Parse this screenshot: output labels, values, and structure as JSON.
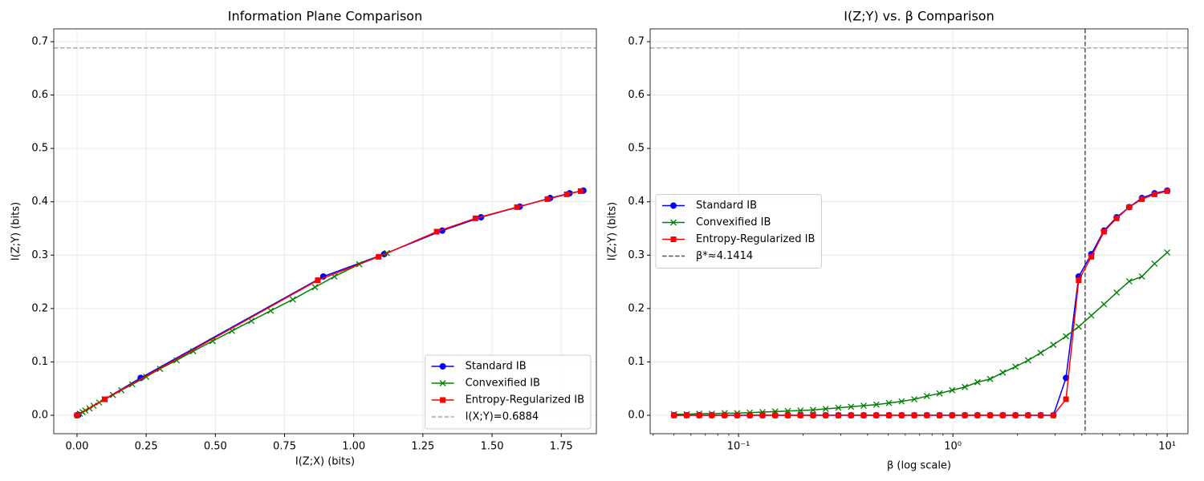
{
  "chart_data": [
    {
      "type": "line",
      "title": "Information Plane Comparison",
      "xlabel": "I(Z;X) (bits)",
      "ylabel": "I(Z;Y) (bits)",
      "xlim": [
        -0.084,
        1.877
      ],
      "ylim": [
        -0.0345,
        0.724
      ],
      "xticks": [
        {
          "value": 0,
          "label": "0.00"
        },
        {
          "value": 0.25,
          "label": "0.25"
        },
        {
          "value": 0.5,
          "label": "0.50"
        },
        {
          "value": 0.75,
          "label": "0.75"
        },
        {
          "value": 1,
          "label": "1.00"
        },
        {
          "value": 1.25,
          "label": "1.25"
        },
        {
          "value": 1.5,
          "label": "1.50"
        },
        {
          "value": 1.75,
          "label": "1.75"
        }
      ],
      "yticks": [
        {
          "value": 0,
          "label": "0.0"
        },
        0.1,
        0.2,
        0.3,
        0.4,
        0.5,
        0.6,
        0.7
      ],
      "grid": true,
      "legend": "lower right",
      "series": [
        {
          "name": "Standard IB",
          "color": "#0000ff",
          "marker": "circle",
          "x": [
            0,
            0.005,
            0.23,
            0.89,
            1.11,
            1.32,
            1.46,
            1.6,
            1.71,
            1.78,
            1.83
          ],
          "values": [
            0,
            0.001,
            0.07,
            0.26,
            0.302,
            0.346,
            0.371,
            0.391,
            0.407,
            0.416,
            0.421
          ]
        },
        {
          "name": "Convexified IB",
          "color": "#008000",
          "marker": "x",
          "x": [
            0.01,
            0.02,
            0.03,
            0.045,
            0.06,
            0.08,
            0.1,
            0.13,
            0.16,
            0.2,
            0.25,
            0.3,
            0.36,
            0.42,
            0.49,
            0.56,
            0.63,
            0.7,
            0.78,
            0.86,
            0.93,
            1.02,
            1.12
          ],
          "values": [
            0.003,
            0.006,
            0.009,
            0.013,
            0.018,
            0.024,
            0.03,
            0.038,
            0.047,
            0.058,
            0.072,
            0.087,
            0.103,
            0.12,
            0.139,
            0.158,
            0.177,
            0.196,
            0.217,
            0.24,
            0.26,
            0.283,
            0.304
          ]
        },
        {
          "name": "Entropy-Regularized IB",
          "color": "#ff0000",
          "marker": "square",
          "x": [
            0,
            0.1,
            0.87,
            1.09,
            1.3,
            1.44,
            1.59,
            1.7,
            1.77,
            1.82
          ],
          "values": [
            0,
            0.03,
            0.253,
            0.297,
            0.344,
            0.369,
            0.39,
            0.405,
            0.414,
            0.42
          ]
        }
      ],
      "hlines": [
        {
          "name": "I(X;Y)=0.6884",
          "value": 0.6884,
          "color": "#aaaaaa"
        }
      ]
    },
    {
      "type": "line",
      "title": "I(Z;Y) vs. β Comparison",
      "xlabel": "β (log scale)",
      "ylabel": "I(Z;Y) (bits)",
      "xscale": "log",
      "xlim": [
        0.0387,
        12.5
      ],
      "ylim": [
        -0.0345,
        0.724
      ],
      "xticks": [
        {
          "value": 0.1,
          "label": "10⁻¹"
        },
        {
          "value": 1,
          "label": "10⁰"
        },
        {
          "value": 10,
          "label": "10¹"
        }
      ],
      "xminorticks": [
        0.04,
        0.05,
        0.06,
        0.07,
        0.08,
        0.09,
        0.2,
        0.3,
        0.4,
        0.5,
        0.6,
        0.7,
        0.8,
        0.9,
        2,
        3,
        4,
        5,
        6,
        7,
        8,
        9
      ],
      "yticks": [
        {
          "value": 0,
          "label": "0.0"
        },
        0.1,
        0.2,
        0.3,
        0.4,
        0.5,
        0.6,
        0.7
      ],
      "grid": true,
      "legend": "center left",
      "x": [
        0.05,
        0.0573,
        0.0656,
        0.0751,
        0.0861,
        0.0986,
        0.1129,
        0.1294,
        0.1482,
        0.1698,
        0.1945,
        0.2228,
        0.2552,
        0.2923,
        0.3349,
        0.3836,
        0.4394,
        0.5034,
        0.5767,
        0.6606,
        0.7568,
        0.8669,
        0.9931,
        1.1376,
        1.3032,
        1.4928,
        1.71,
        1.9588,
        2.2439,
        2.5704,
        2.9444,
        3.3729,
        3.8637,
        4.4259,
        5.07,
        5.8077,
        6.6528,
        7.6209,
        8.7298,
        10
      ],
      "series": [
        {
          "name": "Standard IB",
          "color": "#0000ff",
          "marker": "circle",
          "values": [
            0,
            0,
            0,
            0,
            0,
            0,
            0,
            0,
            0,
            0,
            0,
            0,
            0,
            0,
            0,
            0,
            0,
            0,
            0,
            0,
            0,
            0,
            0,
            0,
            0,
            0,
            0,
            0,
            0,
            0,
            0,
            0.07,
            0.26,
            0.302,
            0.346,
            0.371,
            0.39,
            0.407,
            0.416,
            0.421
          ]
        },
        {
          "name": "Convexified IB",
          "color": "#008000",
          "marker": "x",
          "values": [
            0.002,
            0.002,
            0.003,
            0.003,
            0.004,
            0.004,
            0.005,
            0.006,
            0.007,
            0.008,
            0.009,
            0.01,
            0.012,
            0.014,
            0.016,
            0.018,
            0.02,
            0.023,
            0.026,
            0.03,
            0.036,
            0.041,
            0.047,
            0.053,
            0.062,
            0.068,
            0.08,
            0.091,
            0.103,
            0.117,
            0.132,
            0.148,
            0.166,
            0.187,
            0.208,
            0.23,
            0.251,
            0.26,
            0.284,
            0.305
          ]
        },
        {
          "name": "Entropy-Regularized IB",
          "color": "#ff0000",
          "marker": "square",
          "values": [
            0,
            0,
            0,
            0,
            0,
            0,
            0,
            0,
            0,
            0,
            0,
            0,
            0,
            0,
            0,
            0,
            0,
            0,
            0,
            0,
            0,
            0,
            0,
            0,
            0,
            0,
            0,
            0,
            0,
            0,
            0,
            0.03,
            0.253,
            0.297,
            0.344,
            0.369,
            0.39,
            0.405,
            0.414,
            0.42
          ]
        }
      ],
      "vlines": [
        {
          "name": "β*≈4.1414",
          "value": 4.1414,
          "color": "#555555"
        }
      ],
      "hlines": [
        {
          "value": 0.6884,
          "color": "#aaaaaa"
        }
      ]
    }
  ]
}
